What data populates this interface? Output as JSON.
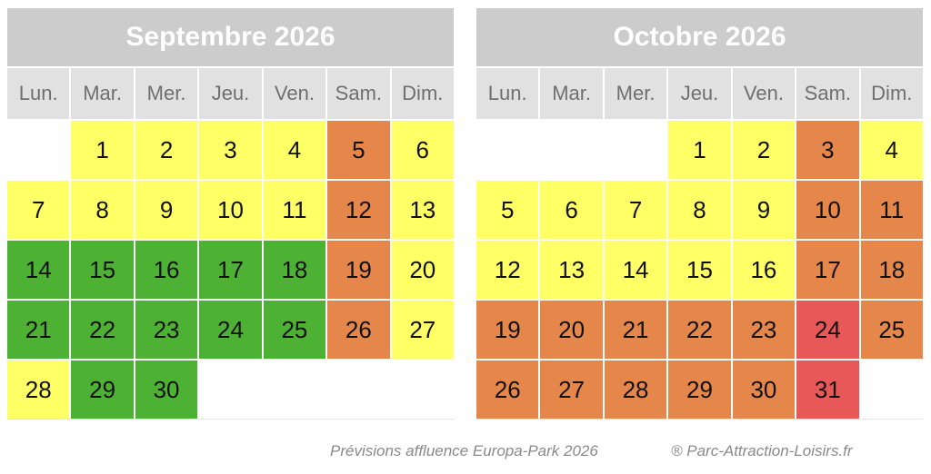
{
  "calendars": [
    {
      "title": "Septembre 2026",
      "weekdays": [
        "Lun.",
        "Mar.",
        "Mer.",
        "Jeu.",
        "Ven.",
        "Sam.",
        "Dim."
      ],
      "weeks": [
        [
          {
            "day": "",
            "level": "empty"
          },
          {
            "day": "1",
            "level": "yellow"
          },
          {
            "day": "2",
            "level": "yellow"
          },
          {
            "day": "3",
            "level": "yellow"
          },
          {
            "day": "4",
            "level": "yellow"
          },
          {
            "day": "5",
            "level": "orange"
          },
          {
            "day": "6",
            "level": "yellow"
          }
        ],
        [
          {
            "day": "7",
            "level": "yellow"
          },
          {
            "day": "8",
            "level": "yellow"
          },
          {
            "day": "9",
            "level": "yellow"
          },
          {
            "day": "10",
            "level": "yellow"
          },
          {
            "day": "11",
            "level": "yellow"
          },
          {
            "day": "12",
            "level": "orange"
          },
          {
            "day": "13",
            "level": "yellow"
          }
        ],
        [
          {
            "day": "14",
            "level": "green"
          },
          {
            "day": "15",
            "level": "green"
          },
          {
            "day": "16",
            "level": "green"
          },
          {
            "day": "17",
            "level": "green"
          },
          {
            "day": "18",
            "level": "green"
          },
          {
            "day": "19",
            "level": "orange"
          },
          {
            "day": "20",
            "level": "yellow"
          }
        ],
        [
          {
            "day": "21",
            "level": "green"
          },
          {
            "day": "22",
            "level": "green"
          },
          {
            "day": "23",
            "level": "green"
          },
          {
            "day": "24",
            "level": "green"
          },
          {
            "day": "25",
            "level": "green"
          },
          {
            "day": "26",
            "level": "orange"
          },
          {
            "day": "27",
            "level": "yellow"
          }
        ],
        [
          {
            "day": "28",
            "level": "yellow"
          },
          {
            "day": "29",
            "level": "green"
          },
          {
            "day": "30",
            "level": "green"
          },
          {
            "day": "",
            "level": "empty"
          },
          {
            "day": "",
            "level": "empty"
          },
          {
            "day": "",
            "level": "empty"
          },
          {
            "day": "",
            "level": "empty"
          }
        ]
      ]
    },
    {
      "title": "Octobre 2026",
      "weekdays": [
        "Lun.",
        "Mar.",
        "Mer.",
        "Jeu.",
        "Ven.",
        "Sam.",
        "Dim."
      ],
      "weeks": [
        [
          {
            "day": "",
            "level": "empty"
          },
          {
            "day": "",
            "level": "empty"
          },
          {
            "day": "",
            "level": "empty"
          },
          {
            "day": "1",
            "level": "yellow"
          },
          {
            "day": "2",
            "level": "yellow"
          },
          {
            "day": "3",
            "level": "orange"
          },
          {
            "day": "4",
            "level": "yellow"
          }
        ],
        [
          {
            "day": "5",
            "level": "yellow"
          },
          {
            "day": "6",
            "level": "yellow"
          },
          {
            "day": "7",
            "level": "yellow"
          },
          {
            "day": "8",
            "level": "yellow"
          },
          {
            "day": "9",
            "level": "yellow"
          },
          {
            "day": "10",
            "level": "orange"
          },
          {
            "day": "11",
            "level": "orange"
          }
        ],
        [
          {
            "day": "12",
            "level": "yellow"
          },
          {
            "day": "13",
            "level": "yellow"
          },
          {
            "day": "14",
            "level": "yellow"
          },
          {
            "day": "15",
            "level": "yellow"
          },
          {
            "day": "16",
            "level": "yellow"
          },
          {
            "day": "17",
            "level": "orange"
          },
          {
            "day": "18",
            "level": "orange"
          }
        ],
        [
          {
            "day": "19",
            "level": "orange"
          },
          {
            "day": "20",
            "level": "orange"
          },
          {
            "day": "21",
            "level": "orange"
          },
          {
            "day": "22",
            "level": "orange"
          },
          {
            "day": "23",
            "level": "orange"
          },
          {
            "day": "24",
            "level": "red"
          },
          {
            "day": "25",
            "level": "orange"
          }
        ],
        [
          {
            "day": "26",
            "level": "orange"
          },
          {
            "day": "27",
            "level": "orange"
          },
          {
            "day": "28",
            "level": "orange"
          },
          {
            "day": "29",
            "level": "orange"
          },
          {
            "day": "30",
            "level": "orange"
          },
          {
            "day": "31",
            "level": "red"
          },
          {
            "day": "",
            "level": "empty"
          }
        ]
      ]
    }
  ],
  "colors": {
    "yellow": "#ffff66",
    "green": "#4db233",
    "orange": "#e5874a",
    "red": "#e85858",
    "header_bg": "#cccccc"
  },
  "footer": {
    "caption": "Prévisions affluence Europa-Park 2026",
    "copyright": "® Parc-Attraction-Loisirs.fr"
  }
}
